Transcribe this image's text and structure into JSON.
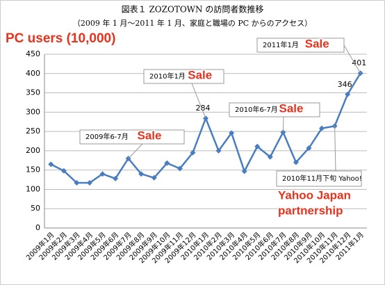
{
  "chart_data": {
    "type": "line",
    "title": "図表１ ZOZOTOWN の訪問者数推移",
    "subtitle": "（2009 年 1 月〜2011 年 1 月、家庭と職場の PC からのアクセス）",
    "y_axis_label": "PC users (10,000)",
    "categories": [
      "2009年1月",
      "2009年2月",
      "2009年3月",
      "2009年4月",
      "2009年5月",
      "2009年6月",
      "2009年7月",
      "2009年8月",
      "2009年9月",
      "2009年10月",
      "2009年11月",
      "2009年12月",
      "2010年1月",
      "2010年2月",
      "2010年3月",
      "2010年4月",
      "2010年5月",
      "2010年6月",
      "2010年7月",
      "2010年8月",
      "2010年9月",
      "2010年10月",
      "2010年11月",
      "2010年12月",
      "2011年1月"
    ],
    "values": [
      165,
      148,
      117,
      117,
      140,
      128,
      180,
      140,
      130,
      168,
      154,
      195,
      284,
      200,
      246,
      147,
      211,
      184,
      248,
      170,
      207,
      258,
      264,
      346,
      401
    ],
    "value_labels": [
      null,
      null,
      null,
      null,
      null,
      null,
      null,
      null,
      null,
      null,
      null,
      null,
      "284",
      null,
      null,
      null,
      null,
      null,
      null,
      null,
      null,
      null,
      null,
      "346",
      "401"
    ],
    "color": "#4a7cc0",
    "ylim": [
      0,
      450
    ],
    "yticks": [
      0,
      50,
      100,
      150,
      200,
      250,
      300,
      350,
      400,
      450
    ],
    "grid": true,
    "annotations": [
      {
        "text": "2009年6-7月",
        "highlight": [
          "Sale"
        ]
      },
      {
        "text": "2010年1月",
        "highlight": [
          "Sale"
        ]
      },
      {
        "text": "2010年6-7月",
        "highlight": [
          "Sale"
        ]
      },
      {
        "text": "2011年1月",
        "highlight": [
          "Sale"
        ]
      },
      {
        "text": "2010年11月下旬 Yahoo!",
        "highlight": [
          "Yahoo Japan",
          "partnership"
        ]
      }
    ]
  }
}
